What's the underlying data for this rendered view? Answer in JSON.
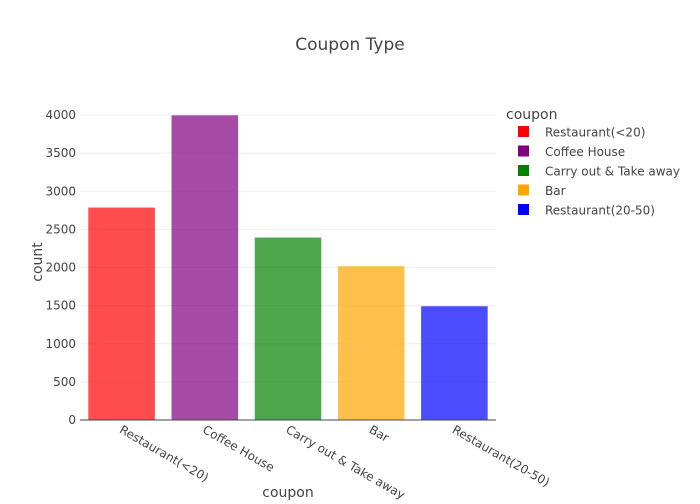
{
  "chart_data": {
    "type": "bar",
    "title": "Coupon Type",
    "xlabel": "coupon",
    "ylabel": "count",
    "ylim": [
      0,
      4000
    ],
    "yticks": [
      0,
      500,
      1000,
      1500,
      2000,
      2500,
      3000,
      3500,
      4000
    ],
    "grid": true,
    "legend_title": "coupon",
    "legend_position": "top-right",
    "categories": [
      "Restaurant(<20)",
      "Coffee House",
      "Carry out & Take away",
      "Bar",
      "Restaurant(20-50)"
    ],
    "values": [
      2786,
      3996,
      2393,
      2017,
      1492
    ],
    "colors": [
      "#ff0000",
      "#800080",
      "#008000",
      "#ffa500",
      "#0000ff"
    ],
    "series": [
      {
        "name": "Restaurant(<20)",
        "color": "#ff0000"
      },
      {
        "name": "Coffee House",
        "color": "#800080"
      },
      {
        "name": "Carry out & Take away",
        "color": "#008000"
      },
      {
        "name": "Bar",
        "color": "#ffa500"
      },
      {
        "name": "Restaurant(20-50)",
        "color": "#0000ff"
      }
    ]
  }
}
